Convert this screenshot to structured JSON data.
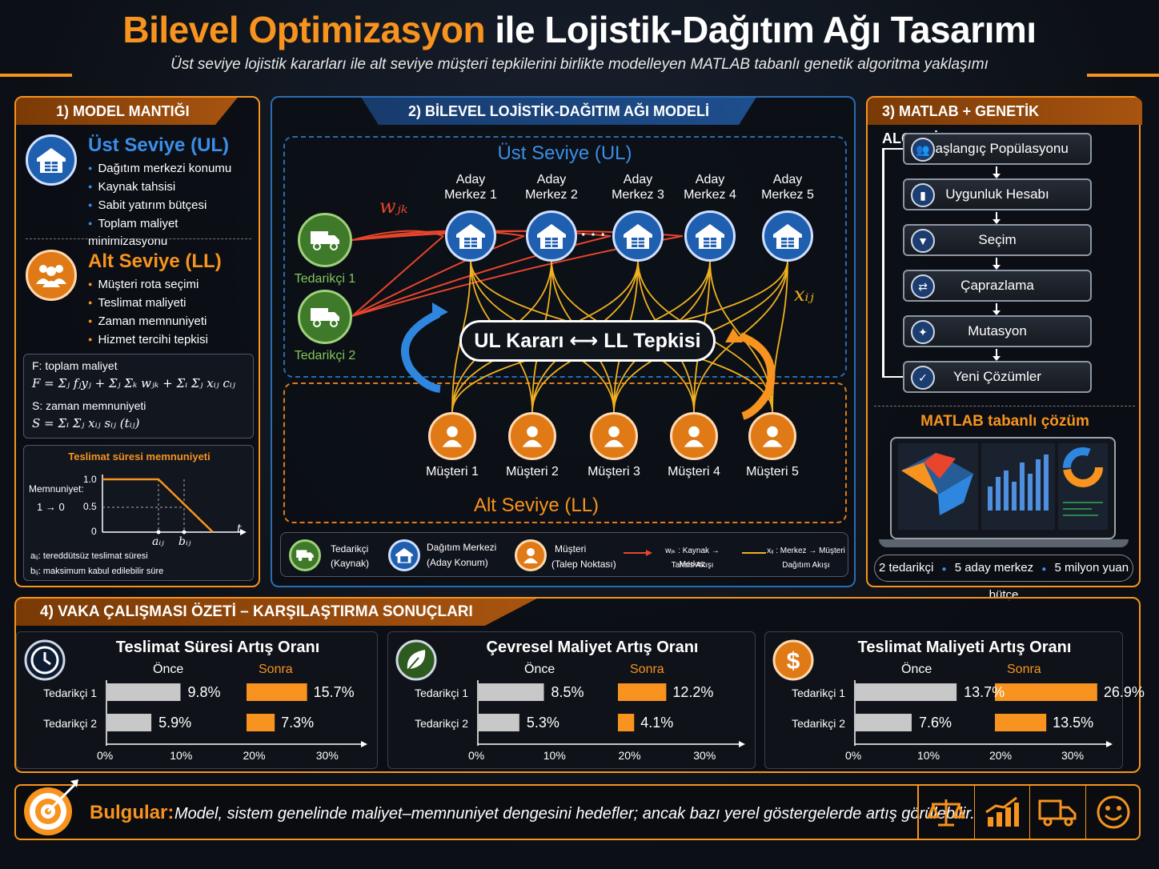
{
  "header": {
    "title_orange": "Bilevel Optimizasyon",
    "title_white": "ile Lojistik-Dağıtım Ağı Tasarımı",
    "subtitle": "Üst seviye lojistik kararları ile alt seviye müşteri tepkilerini birlikte modelleyen MATLAB tabanlı genetik algoritma yaklaşımı"
  },
  "panel1": {
    "title": "1) MODEL MANTIĞI",
    "ul": {
      "heading": "Üst Seviye (UL)",
      "items": [
        "Dağıtım merkezi konumu",
        "Kaynak tahsisi",
        "Sabit yatırım bütçesi",
        "Toplam maliyet minimizasyonu"
      ]
    },
    "ll": {
      "heading": "Alt Seviye (LL)",
      "items": [
        "Müşteri rota seçimi",
        "Teslimat maliyeti",
        "Zaman memnuniyeti",
        "Hizmet tercihi tepkisi"
      ]
    },
    "f_label": "F: toplam maliyet",
    "f_formula": "F = Σⱼ fⱼyⱼ + Σⱼ Σₖ wⱼₖ + Σᵢ Σⱼ xᵢⱼ cᵢⱼ",
    "s_label": "S: zaman memnuniyeti",
    "s_formula": "S = Σᵢ Σⱼ xᵢⱼ sᵢⱼ (tᵢⱼ)",
    "sat": {
      "title": "Teslimat süresi memnuniyeti",
      "ylabel": "Memnuniyet:",
      "yrange": "1 → 0",
      "y1": "1.0",
      "y05": "0.5",
      "y0": "0",
      "a": "aᵢⱼ",
      "b": "bᵢⱼ",
      "t": "t",
      "note_a": "aᵢⱼ: tereddütsüz teslimat süresi",
      "note_b": "bᵢⱼ: maksimum kabul edilebilir süre"
    }
  },
  "panel2": {
    "title": "2) BİLEVEL LOJİSTİK-DAĞITIM AĞI MODELİ",
    "ul_label": "Üst Seviye (UL)",
    "ll_label": "Alt Seviye (LL)",
    "w_label": "wⱼₖ",
    "x_label": "xᵢⱼ",
    "dots": "· · ·",
    "suppliers": [
      "Tedarikçi 1",
      "Tedarikçi 2"
    ],
    "centers": [
      "Aday Merkez 1",
      "Aday Merkez 2",
      "Aday Merkez 3",
      "Aday Merkez 4",
      "Aday Merkez 5"
    ],
    "customers": [
      "Müşteri 1",
      "Müşteri 2",
      "Müşteri 3",
      "Müşteri 4",
      "Müşteri 5"
    ],
    "center_pill": "UL Kararı ⟷ LL Tepkisi",
    "legend": {
      "sup1": "Tedarikçi",
      "sup2": "(Kaynak)",
      "dc1": "Dağıtım Merkezi",
      "dc2": "(Aday Konum)",
      "cu1": "Müşteri",
      "cu2": "(Talep Noktası)",
      "w1": "wⱼₖ : Kaynak → Merkez",
      "w2": "Tahsis Akışı",
      "x1": "xᵢⱼ : Merkez → Müşteri",
      "x2": "Dağıtım Akışı"
    },
    "colors": {
      "red": "#e8452c",
      "yellow": "#f0b020",
      "blue": "#2e86de",
      "orange": "#f7931e",
      "green": "#3f7a2a"
    }
  },
  "panel3": {
    "title": "3) MATLAB + GENETİK ALGORİTMA",
    "steps": [
      {
        "label": "Başlangıç Popülasyonu",
        "icon": "people-icon"
      },
      {
        "label": "Uygunluk Hesabı",
        "icon": "bar-chart-icon"
      },
      {
        "label": "Seçim",
        "icon": "funnel-icon"
      },
      {
        "label": "Çaprazlama",
        "icon": "shuffle-icon"
      },
      {
        "label": "Mutasyon",
        "icon": "dna-icon"
      },
      {
        "label": "Yeni Çözümler",
        "icon": "check-icon"
      }
    ],
    "matlab_title": "MATLAB tabanlı çözüm",
    "footer": [
      "2 tedarikçi",
      "5 aday merkez",
      "5 milyon yuan bütçe"
    ]
  },
  "panel4": {
    "title": "4) VAKA ÇALIŞMASI ÖZETİ – KARŞILAŞTIRMA SONUÇLARI"
  },
  "chart_data": [
    {
      "type": "bar",
      "title": "Teslimat Süresi Artış Oranı",
      "categories": [
        "Tedarikçi 1",
        "Tedarikçi 2"
      ],
      "series": [
        {
          "name": "Önce",
          "values": [
            9.8,
            5.9
          ]
        },
        {
          "name": "Sonra",
          "values": [
            15.7,
            7.3
          ]
        }
      ],
      "value_labels": {
        "before": [
          "9.8%",
          "5.9%"
        ],
        "after": [
          "15.7%",
          "7.3%"
        ]
      },
      "ticks": [
        "0%",
        "10%",
        "20%",
        "30%"
      ]
    },
    {
      "type": "bar",
      "title": "Çevresel Maliyet Artış Oranı",
      "categories": [
        "Tedarikçi 1",
        "Tedarikçi 2"
      ],
      "series": [
        {
          "name": "Önce",
          "values": [
            8.5,
            5.3
          ]
        },
        {
          "name": "Sonra",
          "values": [
            12.2,
            4.1
          ]
        }
      ],
      "value_labels": {
        "before": [
          "8.5%",
          "5.3%"
        ],
        "after": [
          "12.2%",
          "4.1%"
        ]
      },
      "ticks": [
        "0%",
        "10%",
        "20%",
        "30%"
      ]
    },
    {
      "type": "bar",
      "title": "Teslimat Maliyeti Artış Oranı",
      "categories": [
        "Tedarikçi 1",
        "Tedarikçi 2"
      ],
      "series": [
        {
          "name": "Önce",
          "values": [
            13.7,
            7.6
          ]
        },
        {
          "name": "Sonra",
          "values": [
            26.9,
            13.5
          ]
        }
      ],
      "value_labels": {
        "before": [
          "13.7%",
          "7.6%"
        ],
        "after": [
          "26.9%",
          "13.5%"
        ]
      },
      "ticks": [
        "0%",
        "10%",
        "20%",
        "30%"
      ]
    }
  ],
  "findings": {
    "label": "Bulgular:",
    "text": "Model, sistem genelinde maliyet–memnuniyet dengesini hedefler; ancak bazı yerel göstergelerde artış görülebilir."
  }
}
